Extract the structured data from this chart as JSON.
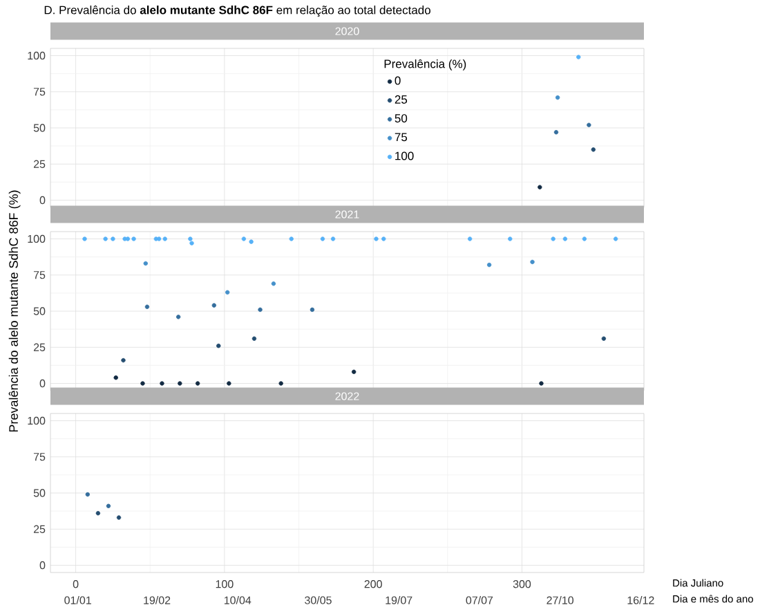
{
  "chart_data": [
    {
      "type": "scatter",
      "title": "D. Prevalência do **alelo mutante SdhC 86F** em relação ao total detectado",
      "subtitle": "2020",
      "legend_title": "Prevalência (%)",
      "legend": "top",
      "grid": true,
      "tick_labels": "y",
      "xlim": [
        -17,
        382
      ],
      "ylim": [
        -5,
        105
      ],
      "xticks": [
        0,
        100,
        200,
        300
      ],
      "yticks": [
        0,
        25,
        50,
        75,
        100
      ],
      "series": [
        {
          "name": "0",
          "color": "#132b43",
          "x": [
            312
          ],
          "values": [
            9
          ]
        },
        {
          "name": "25",
          "color": "#244d70",
          "x": [
            348
          ],
          "values": [
            35
          ]
        },
        {
          "name": "50",
          "color": "#356e9d",
          "x": [
            323,
            345
          ],
          "values": [
            47,
            52
          ]
        },
        {
          "name": "75",
          "color": "#4590ca",
          "x": [
            324
          ],
          "values": [
            71
          ]
        },
        {
          "name": "100",
          "color": "#56b1f7",
          "x": [
            338
          ],
          "values": [
            99
          ]
        }
      ]
    },
    {
      "type": "scatter",
      "subtitle": "2021",
      "ylabel": "Prevalência do alelo mutante SdhC 86F (%)",
      "grid": true,
      "tick_labels": "y",
      "xlim": [
        -17,
        382
      ],
      "ylim": [
        -5,
        105
      ],
      "xticks": [
        0,
        100,
        200,
        300
      ],
      "yticks": [
        0,
        25,
        50,
        75,
        100
      ],
      "series": [
        {
          "color": "#132b43",
          "x": [
            27,
            187,
            45,
            58,
            70,
            82,
            103,
            138,
            313
          ],
          "values": [
            4,
            8,
            0,
            0,
            0,
            0,
            0,
            0,
            0
          ]
        },
        {
          "color": "#244d70",
          "x": [
            32,
            96,
            120,
            355
          ],
          "values": [
            16,
            26,
            31,
            31
          ]
        },
        {
          "color": "#356e9d",
          "x": [
            48,
            93,
            124,
            159,
            69
          ],
          "values": [
            53,
            54,
            51,
            51,
            46
          ]
        },
        {
          "color": "#4590ca",
          "x": [
            133,
            102,
            47,
            278,
            307
          ],
          "values": [
            69,
            63,
            83,
            82,
            84
          ]
        },
        {
          "color": "#56b1f7",
          "x": [
            6,
            20,
            25,
            33,
            35,
            39,
            54,
            56,
            60,
            77,
            78,
            113,
            118,
            145,
            166,
            173,
            202,
            207,
            265,
            292,
            321,
            329,
            342,
            363
          ],
          "values": [
            100,
            100,
            100,
            100,
            100,
            100,
            100,
            100,
            100,
            100,
            97,
            100,
            98,
            100,
            100,
            100,
            100,
            100,
            100,
            100,
            100,
            100,
            100,
            100
          ]
        }
      ]
    },
    {
      "type": "scatter",
      "subtitle": "2022",
      "xlabel": "Dia Juliano",
      "x2label": "Dia e mês do ano",
      "grid": true,
      "xlim": [
        -17,
        382
      ],
      "ylim": [
        -5,
        105
      ],
      "xticks": [
        0,
        100,
        200,
        300
      ],
      "yticks": [
        0,
        25,
        50,
        75,
        100
      ],
      "x2lim": [
        "2021-12-15",
        "2022-12-18"
      ],
      "x2ticks": [
        {
          "value": "2022-01-01",
          "label": "01/01"
        },
        {
          "value": "2022-02-19",
          "label": "19/02"
        },
        {
          "value": "2022-04-10",
          "label": "10/04"
        },
        {
          "value": "2022-05-30",
          "label": "30/05"
        },
        {
          "value": "2022-07-19",
          "label": "19/07"
        },
        {
          "value": "2022-09-07",
          "label": "07/07"
        },
        {
          "value": "2022-10-27",
          "label": "27/10"
        },
        {
          "value": "2022-12-16",
          "label": "16/12"
        }
      ],
      "series": [
        {
          "color": "#244d70",
          "x": [
            15,
            29
          ],
          "values": [
            36,
            33
          ]
        },
        {
          "color": "#356e9d",
          "x": [
            8,
            22
          ],
          "values": [
            49,
            41
          ]
        }
      ]
    }
  ]
}
